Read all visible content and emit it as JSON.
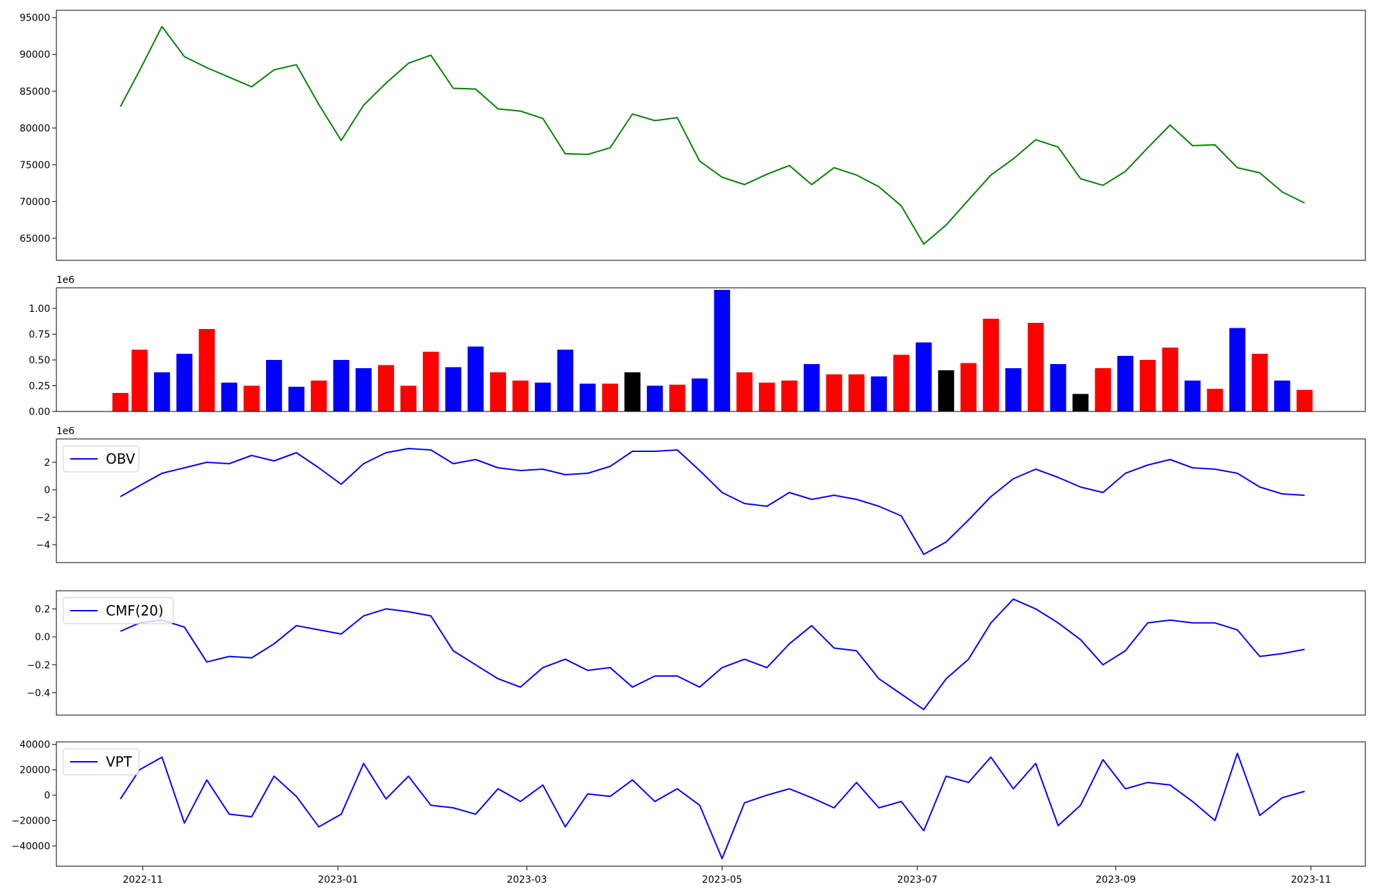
{
  "chart_data": [
    {
      "type": "line",
      "name": "price",
      "color": "#008000",
      "ylim": [
        62000,
        96000
      ],
      "yticks": [
        65000,
        70000,
        75000,
        80000,
        85000,
        90000,
        95000
      ],
      "ytick_labels": [
        "65000",
        "70000",
        "75000",
        "80000",
        "85000",
        "90000",
        "95000"
      ],
      "xlim": [
        "2022-10-05",
        "2023-11-18"
      ],
      "legend": "",
      "x": [
        "2022-10-25",
        "2022-10-31",
        "2022-11-07",
        "2022-11-14",
        "2022-11-21",
        "2022-11-28",
        "2022-12-05",
        "2022-12-12",
        "2022-12-19",
        "2022-12-26",
        "2023-01-02",
        "2023-01-09",
        "2023-01-16",
        "2023-01-23",
        "2023-01-30",
        "2023-02-06",
        "2023-02-13",
        "2023-02-20",
        "2023-02-27",
        "2023-03-06",
        "2023-03-13",
        "2023-03-20",
        "2023-03-27",
        "2023-04-03",
        "2023-04-10",
        "2023-04-17",
        "2023-04-24",
        "2023-05-01",
        "2023-05-08",
        "2023-05-15",
        "2023-05-22",
        "2023-05-29",
        "2023-06-05",
        "2023-06-12",
        "2023-06-19",
        "2023-06-26",
        "2023-07-03",
        "2023-07-10",
        "2023-07-17",
        "2023-07-24",
        "2023-07-31",
        "2023-08-07",
        "2023-08-14",
        "2023-08-21",
        "2023-08-28",
        "2023-09-04",
        "2023-09-11",
        "2023-09-18",
        "2023-09-25",
        "2023-10-02",
        "2023-10-09",
        "2023-10-16",
        "2023-10-23",
        "2023-10-30"
      ],
      "values": [
        82900,
        87800,
        93800,
        89700,
        88200,
        86900,
        85600,
        87900,
        88600,
        83200,
        78300,
        83100,
        86100,
        88800,
        89900,
        85400,
        85300,
        82600,
        82300,
        81300,
        76500,
        76400,
        77300,
        81900,
        81000,
        81400,
        75500,
        73300,
        72300,
        73700,
        74900,
        72300,
        74600,
        73600,
        72000,
        69400,
        64200,
        66800,
        70200,
        73600,
        75800,
        78400,
        77400,
        73100,
        72200,
        74100,
        77300,
        80400,
        77600,
        77700,
        74600,
        73900,
        71300,
        69800
      ]
    },
    {
      "type": "bar",
      "name": "volume",
      "ylim": [
        0,
        1200000
      ],
      "yticks": [
        0,
        250000,
        500000,
        750000,
        1000000
      ],
      "ytick_labels": [
        "0.00",
        "0.25",
        "0.50",
        "0.75",
        "1.00"
      ],
      "offset_label": "1e6",
      "up_color": "#ff0000",
      "down_color": "#0000ff",
      "flat_color": "#000000",
      "xlim": [
        "2022-10-05",
        "2023-11-18"
      ],
      "x": [
        "2022-10-25",
        "2022-10-31",
        "2022-11-07",
        "2022-11-14",
        "2022-11-21",
        "2022-11-28",
        "2022-12-05",
        "2022-12-12",
        "2022-12-19",
        "2022-12-26",
        "2023-01-02",
        "2023-01-09",
        "2023-01-16",
        "2023-01-23",
        "2023-01-30",
        "2023-02-06",
        "2023-02-13",
        "2023-02-20",
        "2023-02-27",
        "2023-03-06",
        "2023-03-13",
        "2023-03-20",
        "2023-03-27",
        "2023-04-03",
        "2023-04-10",
        "2023-04-17",
        "2023-04-24",
        "2023-05-01",
        "2023-05-08",
        "2023-05-15",
        "2023-05-22",
        "2023-05-29",
        "2023-06-05",
        "2023-06-12",
        "2023-06-19",
        "2023-06-26",
        "2023-07-03",
        "2023-07-10",
        "2023-07-17",
        "2023-07-24",
        "2023-07-31",
        "2023-08-07",
        "2023-08-14",
        "2023-08-21",
        "2023-08-28",
        "2023-09-04",
        "2023-09-11",
        "2023-09-18",
        "2023-09-25",
        "2023-10-02",
        "2023-10-09",
        "2023-10-16",
        "2023-10-23",
        "2023-10-30"
      ],
      "values": [
        180000,
        600000,
        380000,
        560000,
        800000,
        280000,
        250000,
        500000,
        240000,
        300000,
        500000,
        420000,
        450000,
        250000,
        580000,
        430000,
        630000,
        380000,
        300000,
        280000,
        600000,
        270000,
        270000,
        380000,
        250000,
        260000,
        320000,
        1180000,
        380000,
        280000,
        300000,
        460000,
        360000,
        360000,
        340000,
        550000,
        670000,
        400000,
        470000,
        900000,
        420000,
        860000,
        460000,
        170000,
        420000,
        540000,
        500000,
        620000,
        300000,
        220000,
        810000,
        560000,
        300000,
        210000
      ],
      "colors": [
        "up",
        "up",
        "down",
        "down",
        "up",
        "down",
        "up",
        "down",
        "down",
        "up",
        "down",
        "down",
        "up",
        "up",
        "up",
        "down",
        "down",
        "up",
        "up",
        "down",
        "down",
        "down",
        "up",
        "flat",
        "down",
        "up",
        "down",
        "down",
        "up",
        "up",
        "up",
        "down",
        "up",
        "up",
        "down",
        "up",
        "down",
        "flat",
        "up",
        "up",
        "down",
        "up",
        "down",
        "flat",
        "up",
        "down",
        "up",
        "up",
        "down",
        "up",
        "down",
        "up",
        "down",
        "up"
      ]
    },
    {
      "type": "line",
      "name": "obv",
      "color": "#0000ff",
      "ylim": [
        -5300000,
        3700000
      ],
      "yticks": [
        -4000000,
        -2000000,
        0,
        2000000
      ],
      "ytick_labels": [
        "−4",
        "−2",
        "0",
        "2"
      ],
      "offset_label": "1e6",
      "legend": "top-left",
      "series_name": "OBV",
      "xlim": [
        "2022-10-05",
        "2023-11-18"
      ],
      "x": [
        "2022-10-25",
        "2022-10-31",
        "2022-11-07",
        "2022-11-14",
        "2022-11-21",
        "2022-11-28",
        "2022-12-05",
        "2022-12-12",
        "2022-12-19",
        "2022-12-26",
        "2023-01-02",
        "2023-01-09",
        "2023-01-16",
        "2023-01-23",
        "2023-01-30",
        "2023-02-06",
        "2023-02-13",
        "2023-02-20",
        "2023-02-27",
        "2023-03-06",
        "2023-03-13",
        "2023-03-20",
        "2023-03-27",
        "2023-04-03",
        "2023-04-10",
        "2023-04-17",
        "2023-04-24",
        "2023-05-01",
        "2023-05-08",
        "2023-05-15",
        "2023-05-22",
        "2023-05-29",
        "2023-06-05",
        "2023-06-12",
        "2023-06-19",
        "2023-06-26",
        "2023-07-03",
        "2023-07-10",
        "2023-07-17",
        "2023-07-24",
        "2023-07-31",
        "2023-08-07",
        "2023-08-14",
        "2023-08-21",
        "2023-08-28",
        "2023-09-04",
        "2023-09-11",
        "2023-09-18",
        "2023-09-25",
        "2023-10-02",
        "2023-10-09",
        "2023-10-16",
        "2023-10-23",
        "2023-10-30"
      ],
      "values": [
        -500000,
        300000,
        1200000,
        1600000,
        2000000,
        1900000,
        2500000,
        2100000,
        2700000,
        1600000,
        400000,
        1900000,
        2700000,
        3000000,
        2900000,
        1900000,
        2200000,
        1600000,
        1400000,
        1500000,
        1100000,
        1200000,
        1700000,
        2800000,
        2800000,
        2900000,
        1400000,
        -200000,
        -1000000,
        -1200000,
        -200000,
        -700000,
        -400000,
        -700000,
        -1200000,
        -1900000,
        -4700000,
        -3800000,
        -2200000,
        -500000,
        800000,
        1500000,
        900000,
        200000,
        -200000,
        1200000,
        1800000,
        2200000,
        1600000,
        1500000,
        1200000,
        200000,
        -300000,
        -400000
      ]
    },
    {
      "type": "line",
      "name": "cmf",
      "color": "#0000ff",
      "ylim": [
        -0.56,
        0.33
      ],
      "yticks": [
        -0.4,
        -0.2,
        0.0,
        0.2
      ],
      "ytick_labels": [
        "−0.4",
        "−0.2",
        "0.0",
        "0.2"
      ],
      "legend": "top-left",
      "series_name": "CMF(20)",
      "xlim": [
        "2022-10-05",
        "2023-11-18"
      ],
      "x": [
        "2022-10-25",
        "2022-10-31",
        "2022-11-07",
        "2022-11-14",
        "2022-11-21",
        "2022-11-28",
        "2022-12-05",
        "2022-12-12",
        "2022-12-19",
        "2022-12-26",
        "2023-01-02",
        "2023-01-09",
        "2023-01-16",
        "2023-01-23",
        "2023-01-30",
        "2023-02-06",
        "2023-02-13",
        "2023-02-20",
        "2023-02-27",
        "2023-03-06",
        "2023-03-13",
        "2023-03-20",
        "2023-03-27",
        "2023-04-03",
        "2023-04-10",
        "2023-04-17",
        "2023-04-24",
        "2023-05-01",
        "2023-05-08",
        "2023-05-15",
        "2023-05-22",
        "2023-05-29",
        "2023-06-05",
        "2023-06-12",
        "2023-06-19",
        "2023-06-26",
        "2023-07-03",
        "2023-07-10",
        "2023-07-17",
        "2023-07-24",
        "2023-07-31",
        "2023-08-07",
        "2023-08-14",
        "2023-08-21",
        "2023-08-28",
        "2023-09-04",
        "2023-09-11",
        "2023-09-18",
        "2023-09-25",
        "2023-10-02",
        "2023-10-09",
        "2023-10-16",
        "2023-10-23",
        "2023-10-30"
      ],
      "values": [
        0.04,
        0.1,
        0.12,
        0.07,
        -0.18,
        -0.14,
        -0.15,
        -0.05,
        0.08,
        0.05,
        0.02,
        0.15,
        0.2,
        0.18,
        0.15,
        -0.1,
        -0.2,
        -0.3,
        -0.36,
        -0.22,
        -0.16,
        -0.24,
        -0.22,
        -0.36,
        -0.28,
        -0.28,
        -0.36,
        -0.22,
        -0.16,
        -0.22,
        -0.05,
        0.08,
        -0.08,
        -0.1,
        -0.3,
        -0.41,
        -0.52,
        -0.3,
        -0.16,
        0.1,
        0.27,
        0.2,
        0.1,
        -0.02,
        -0.2,
        -0.1,
        0.1,
        0.12,
        0.1,
        0.1,
        0.05,
        -0.14,
        -0.12,
        -0.09
      ]
    },
    {
      "type": "line",
      "name": "vpt",
      "color": "#0000ff",
      "ylim": [
        -56000,
        42000
      ],
      "yticks": [
        -40000,
        -20000,
        0,
        20000,
        40000
      ],
      "ytick_labels": [
        "−40000",
        "−20000",
        "0",
        "20000",
        "40000"
      ],
      "legend": "top-left",
      "series_name": "VPT",
      "xlim": [
        "2022-10-05",
        "2023-11-18"
      ],
      "xticks": [
        "2022-11-01",
        "2023-01-01",
        "2023-03-01",
        "2023-05-01",
        "2023-07-01",
        "2023-09-01",
        "2023-11-01"
      ],
      "xtick_labels": [
        "2022-11",
        "2023-01",
        "2023-03",
        "2023-05",
        "2023-07",
        "2023-09",
        "2023-11"
      ],
      "x": [
        "2022-10-25",
        "2022-10-31",
        "2022-11-07",
        "2022-11-14",
        "2022-11-21",
        "2022-11-28",
        "2022-12-05",
        "2022-12-12",
        "2022-12-19",
        "2022-12-26",
        "2023-01-02",
        "2023-01-09",
        "2023-01-16",
        "2023-01-23",
        "2023-01-30",
        "2023-02-06",
        "2023-02-13",
        "2023-02-20",
        "2023-02-27",
        "2023-03-06",
        "2023-03-13",
        "2023-03-20",
        "2023-03-27",
        "2023-04-03",
        "2023-04-10",
        "2023-04-17",
        "2023-04-24",
        "2023-05-01",
        "2023-05-08",
        "2023-05-15",
        "2023-05-22",
        "2023-05-29",
        "2023-06-05",
        "2023-06-12",
        "2023-06-19",
        "2023-06-26",
        "2023-07-03",
        "2023-07-10",
        "2023-07-17",
        "2023-07-24",
        "2023-07-31",
        "2023-08-07",
        "2023-08-14",
        "2023-08-21",
        "2023-08-28",
        "2023-09-04",
        "2023-09-11",
        "2023-09-18",
        "2023-09-25",
        "2023-10-02",
        "2023-10-09",
        "2023-10-16",
        "2023-10-23",
        "2023-10-30"
      ],
      "values": [
        -3000,
        20000,
        30000,
        -22000,
        12000,
        -15000,
        -17000,
        15000,
        -1000,
        -25000,
        -15000,
        25000,
        -3000,
        15000,
        -8000,
        -10000,
        -15000,
        5000,
        -5000,
        8000,
        -25000,
        1000,
        -1000,
        12000,
        -5000,
        5000,
        -8000,
        -50000,
        -6000,
        0,
        5000,
        -2000,
        -10000,
        10000,
        -10000,
        -5000,
        -28000,
        15000,
        10000,
        30000,
        5000,
        25000,
        -24000,
        -8000,
        28000,
        5000,
        10000,
        8000,
        -5000,
        -20000,
        33000,
        -16000,
        -2000,
        3000
      ]
    }
  ]
}
